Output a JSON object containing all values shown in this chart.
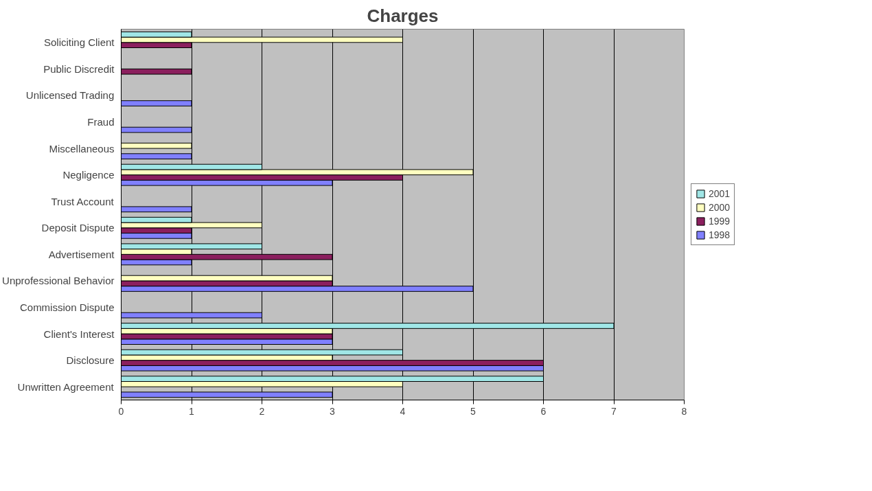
{
  "chart_data": {
    "type": "bar",
    "orientation": "horizontal",
    "title": "Charges",
    "categories": [
      "Soliciting Client",
      "Public Discredit",
      "Unlicensed Trading",
      "Fraud",
      "Miscellaneous",
      "Negligence",
      "Trust Account",
      "Deposit Dispute",
      "Advertisement",
      "Unprofessional Behavior",
      "Commission Dispute",
      "Client's Interest",
      "Disclosure",
      "Unwritten Agreement"
    ],
    "series": [
      {
        "name": "1998",
        "color": "#8080ff",
        "values": [
          null,
          null,
          1,
          1,
          1,
          3,
          1,
          1,
          1,
          5,
          2,
          3,
          6,
          3
        ]
      },
      {
        "name": "1999",
        "color": "#8b1f5e",
        "values": [
          1,
          1,
          null,
          null,
          null,
          4,
          null,
          1,
          3,
          3,
          null,
          3,
          6,
          null
        ]
      },
      {
        "name": "2000",
        "color": "#ffffc0",
        "values": [
          4,
          null,
          null,
          null,
          1,
          5,
          null,
          2,
          1,
          3,
          null,
          3,
          3,
          4
        ]
      },
      {
        "name": "2001",
        "color": "#a0e6e6",
        "values": [
          1,
          null,
          null,
          null,
          null,
          2,
          null,
          1,
          2,
          null,
          null,
          7,
          4,
          6
        ]
      }
    ],
    "xlim": [
      0,
      8
    ],
    "xticks": [
      0,
      1,
      2,
      3,
      4,
      5,
      6,
      7,
      8
    ],
    "grid": "x",
    "legend": "right"
  }
}
